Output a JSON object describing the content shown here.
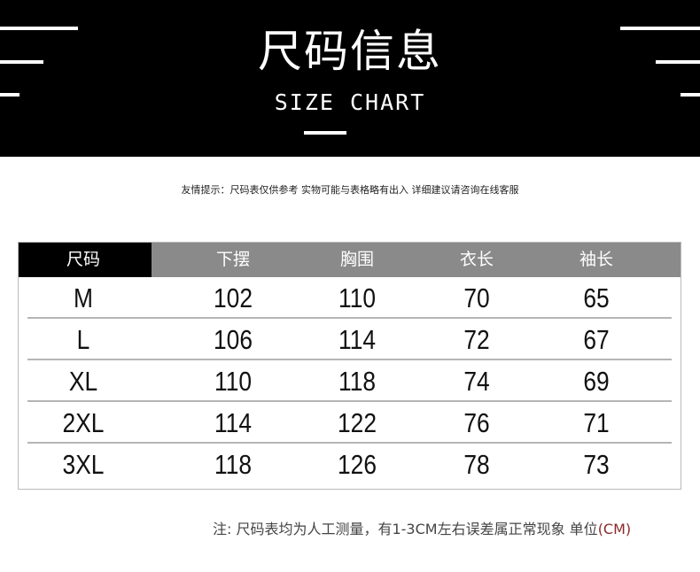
{
  "banner": {
    "title": "尺码信息",
    "subtitle": "SIZE CHART"
  },
  "tip": "友情提示：尺码表仅供参考 实物可能与表格略有出入 详细建议请咨询在线客服",
  "table": {
    "headers": [
      "尺码",
      "下摆",
      "胸围",
      "衣长",
      "袖长"
    ],
    "rows": [
      [
        "M",
        "102",
        "110",
        "70",
        "65"
      ],
      [
        "L",
        "106",
        "114",
        "72",
        "67"
      ],
      [
        "XL",
        "110",
        "118",
        "74",
        "69"
      ],
      [
        "2XL",
        "114",
        "122",
        "76",
        "71"
      ],
      [
        "3XL",
        "118",
        "126",
        "78",
        "73"
      ]
    ]
  },
  "note": {
    "text": "注: 尺码表均为人工测量，有1-3CM左右误差属正常现象  单位",
    "unit": "(CM)"
  },
  "colors": {
    "banner": "#000000",
    "header_gray": "#8a8a8a",
    "unit": "#8b2a2a"
  }
}
